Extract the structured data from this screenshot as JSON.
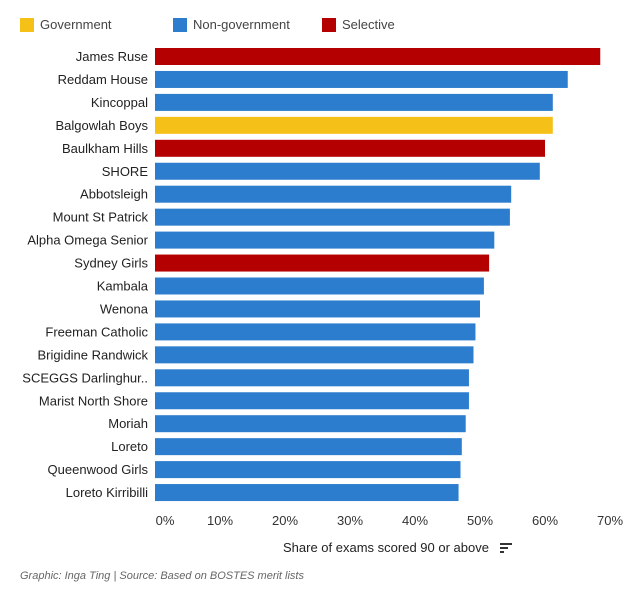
{
  "legend": [
    {
      "label": "Government",
      "color": "#f5c018"
    },
    {
      "label": "Non-government",
      "color": "#2c7dce"
    },
    {
      "label": "Selective",
      "color": "#b40000"
    }
  ],
  "chart_data": {
    "type": "bar",
    "orientation": "horizontal",
    "categories": [
      "James Ruse",
      "Reddam House",
      "Kincoppal",
      "Balgowlah Boys",
      "Baulkham Hills",
      "SHORE",
      "Abbotsleigh",
      "Mount St Patrick",
      "Alpha Omega Senior",
      "Sydney Girls",
      "Kambala",
      "Wenona",
      "Freeman Catholic",
      "Brigidine Randwick",
      "SCEGGS Darlinghur..",
      "Marist North Shore",
      "Moriah",
      "Loreto",
      "Queenwood Girls",
      "Loreto Kirribilli"
    ],
    "values": [
      68.5,
      63.5,
      61.2,
      61.2,
      60.0,
      59.2,
      54.8,
      54.6,
      52.2,
      51.4,
      50.6,
      50.0,
      49.3,
      49.0,
      48.3,
      48.3,
      47.8,
      47.2,
      47.0,
      46.7
    ],
    "groups": [
      "Selective",
      "Non-government",
      "Non-government",
      "Government",
      "Selective",
      "Non-government",
      "Non-government",
      "Non-government",
      "Non-government",
      "Selective",
      "Non-government",
      "Non-government",
      "Non-government",
      "Non-government",
      "Non-government",
      "Non-government",
      "Non-government",
      "Non-government",
      "Non-government",
      "Non-government"
    ],
    "xlim": [
      0,
      70
    ],
    "xticks": [
      "0%",
      "10%",
      "20%",
      "30%",
      "40%",
      "50%",
      "60%",
      "70%"
    ],
    "xlabel": "Share of exams scored 90 or above",
    "grid": false,
    "legend_position": "top-left"
  },
  "footer": {
    "credit": "Graphic: Inga Ting | Source: Based on BOSTES merit lists"
  },
  "icons": {
    "sort": "sort-descending-icon"
  }
}
